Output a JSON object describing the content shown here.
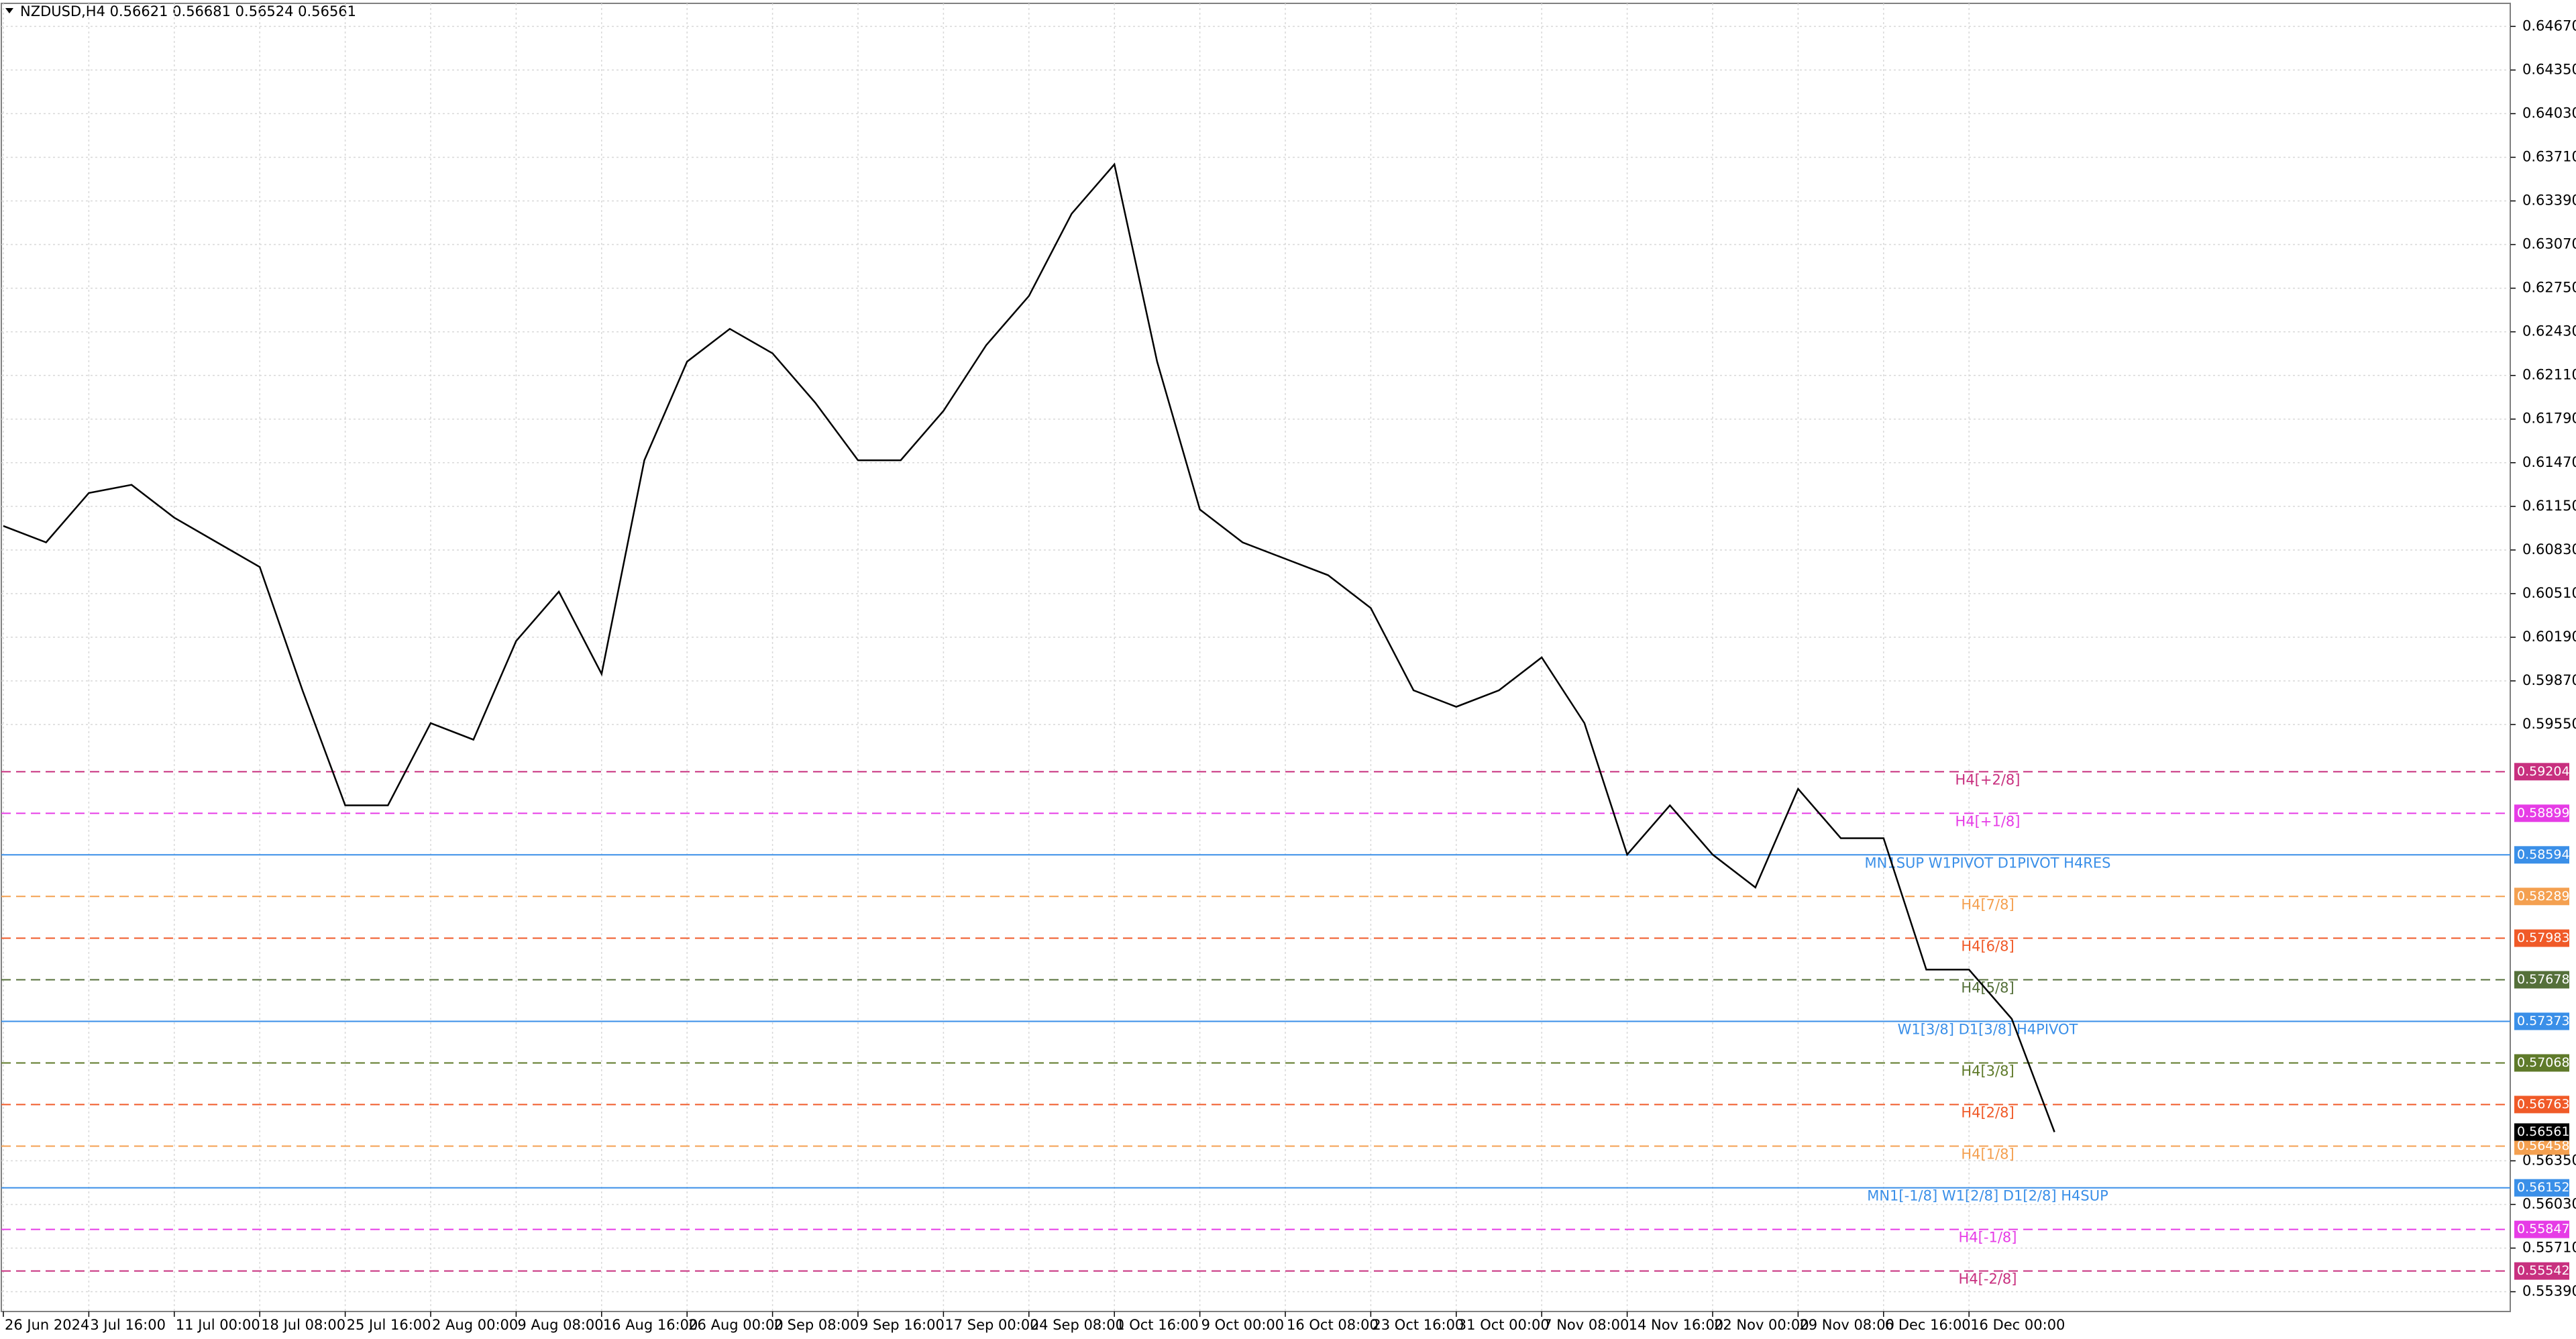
{
  "chart_data": {
    "type": "line",
    "title": "NZDUSD,H4  0.56621 0.56681 0.56524 0.56561",
    "categories": [
      "26 Jun 2024",
      null,
      "3 Jul 16:00",
      null,
      "11 Jul 00:00",
      null,
      "18 Jul 08:00",
      null,
      "25 Jul 16:00",
      null,
      "2 Aug 00:00",
      null,
      "9 Aug 08:00",
      null,
      "16 Aug 16:00",
      null,
      "26 Aug 00:00",
      null,
      "2 Sep 08:00",
      null,
      "9 Sep 16:00",
      null,
      "17 Sep 00:00",
      null,
      "24 Sep 08:00",
      null,
      "1 Oct 16:00",
      null,
      "9 Oct 00:00",
      null,
      "16 Oct 08:00",
      null,
      "23 Oct 16:00",
      null,
      "31 Oct 00:00",
      null,
      "7 Nov 08:00",
      null,
      "14 Nov 16:00",
      null,
      "22 Nov 00:00",
      null,
      "29 Nov 08:00",
      null,
      "6 Dec 16:00",
      null,
      "16 Dec 00:00",
      null,
      null
    ],
    "values": [
      0.61006,
      0.60886,
      0.61248,
      0.61308,
      0.61067,
      0.60886,
      0.60705,
      0.59801,
      0.58957,
      0.58957,
      0.5956,
      0.59439,
      0.60162,
      0.60524,
      0.59921,
      0.61488,
      0.62211,
      0.62452,
      0.62272,
      0.6191,
      0.61488,
      0.61488,
      0.6185,
      0.62332,
      0.62693,
      0.63296,
      0.63658,
      0.62211,
      0.61127,
      0.60886,
      0.60765,
      0.60645,
      0.60404,
      0.59801,
      0.5968,
      0.59801,
      0.60042,
      0.5956,
      0.58596,
      0.58957,
      0.58596,
      0.58355,
      0.59078,
      0.58716,
      0.58716,
      0.57752,
      0.57752,
      0.57391,
      0.56561
    ],
    "color": "#000000",
    "ylim": [
      0.55245,
      0.64839
    ],
    "yticks": [
      {
        "value": 0.6467,
        "label": "0.64670"
      },
      {
        "value": 0.6435,
        "label": "0.64350"
      },
      {
        "value": 0.6403,
        "label": "0.64030"
      },
      {
        "value": 0.6371,
        "label": "0.63710"
      },
      {
        "value": 0.6339,
        "label": "0.63390"
      },
      {
        "value": 0.6307,
        "label": "0.63070"
      },
      {
        "value": 0.6275,
        "label": "0.62750"
      },
      {
        "value": 0.6243,
        "label": "0.62430"
      },
      {
        "value": 0.6211,
        "label": "0.62110"
      },
      {
        "value": 0.6179,
        "label": "0.61790"
      },
      {
        "value": 0.6147,
        "label": "0.61470"
      },
      {
        "value": 0.6115,
        "label": "0.61150"
      },
      {
        "value": 0.6083,
        "label": "0.60830"
      },
      {
        "value": 0.6051,
        "label": "0.60510"
      },
      {
        "value": 0.6019,
        "label": "0.60190"
      },
      {
        "value": 0.5987,
        "label": "0.59870"
      },
      {
        "value": 0.5955,
        "label": "0.59550"
      },
      {
        "value": 0.5635,
        "label": "0.56350"
      },
      {
        "value": 0.5603,
        "label": "0.56030"
      },
      {
        "value": 0.5571,
        "label": "0.55710"
      },
      {
        "value": 0.5539,
        "label": "0.55390"
      }
    ],
    "grid": true,
    "last_price": 0.56561,
    "levels": [
      {
        "value": 0.59204,
        "label": "H4[+2/8]",
        "color": "#c8307f",
        "style": "dashed"
      },
      {
        "value": 0.58899,
        "label": "H4[+1/8]",
        "color": "#e63ce6",
        "style": "dashed"
      },
      {
        "value": 0.58594,
        "label": "MN1SUP W1PIVOT D1PIVOT H4RES",
        "color": "#3a8fe8",
        "style": "solid"
      },
      {
        "value": 0.58289,
        "label": "H4[7/8]",
        "color": "#f4a050",
        "style": "dashed"
      },
      {
        "value": 0.57983,
        "label": "H4[6/8]",
        "color": "#f05a28",
        "style": "dashed"
      },
      {
        "value": 0.57678,
        "label": "H4[5/8]",
        "color": "#55703a",
        "style": "dashed"
      },
      {
        "value": 0.57373,
        "label": "W1[3/8] D1[3/8] H4PIVOT",
        "color": "#3a8fe8",
        "style": "solid"
      },
      {
        "value": 0.57068,
        "label": "H4[3/8]",
        "color": "#5f7a2a",
        "style": "dashed"
      },
      {
        "value": 0.56763,
        "label": "H4[2/8]",
        "color": "#f05a28",
        "style": "dashed"
      },
      {
        "value": 0.56458,
        "label": "H4[1/8]",
        "color": "#f4a050",
        "style": "dashed"
      },
      {
        "value": 0.56152,
        "label": "MN1[-1/8] W1[2/8] D1[2/8] H4SUP",
        "color": "#3a8fe8",
        "style": "solid"
      },
      {
        "value": 0.55847,
        "label": "H4[-1/8]",
        "color": "#e63ce6",
        "style": "dashed"
      },
      {
        "value": 0.55542,
        "label": "H4[-2/8]",
        "color": "#c8307f",
        "style": "dashed"
      }
    ]
  }
}
